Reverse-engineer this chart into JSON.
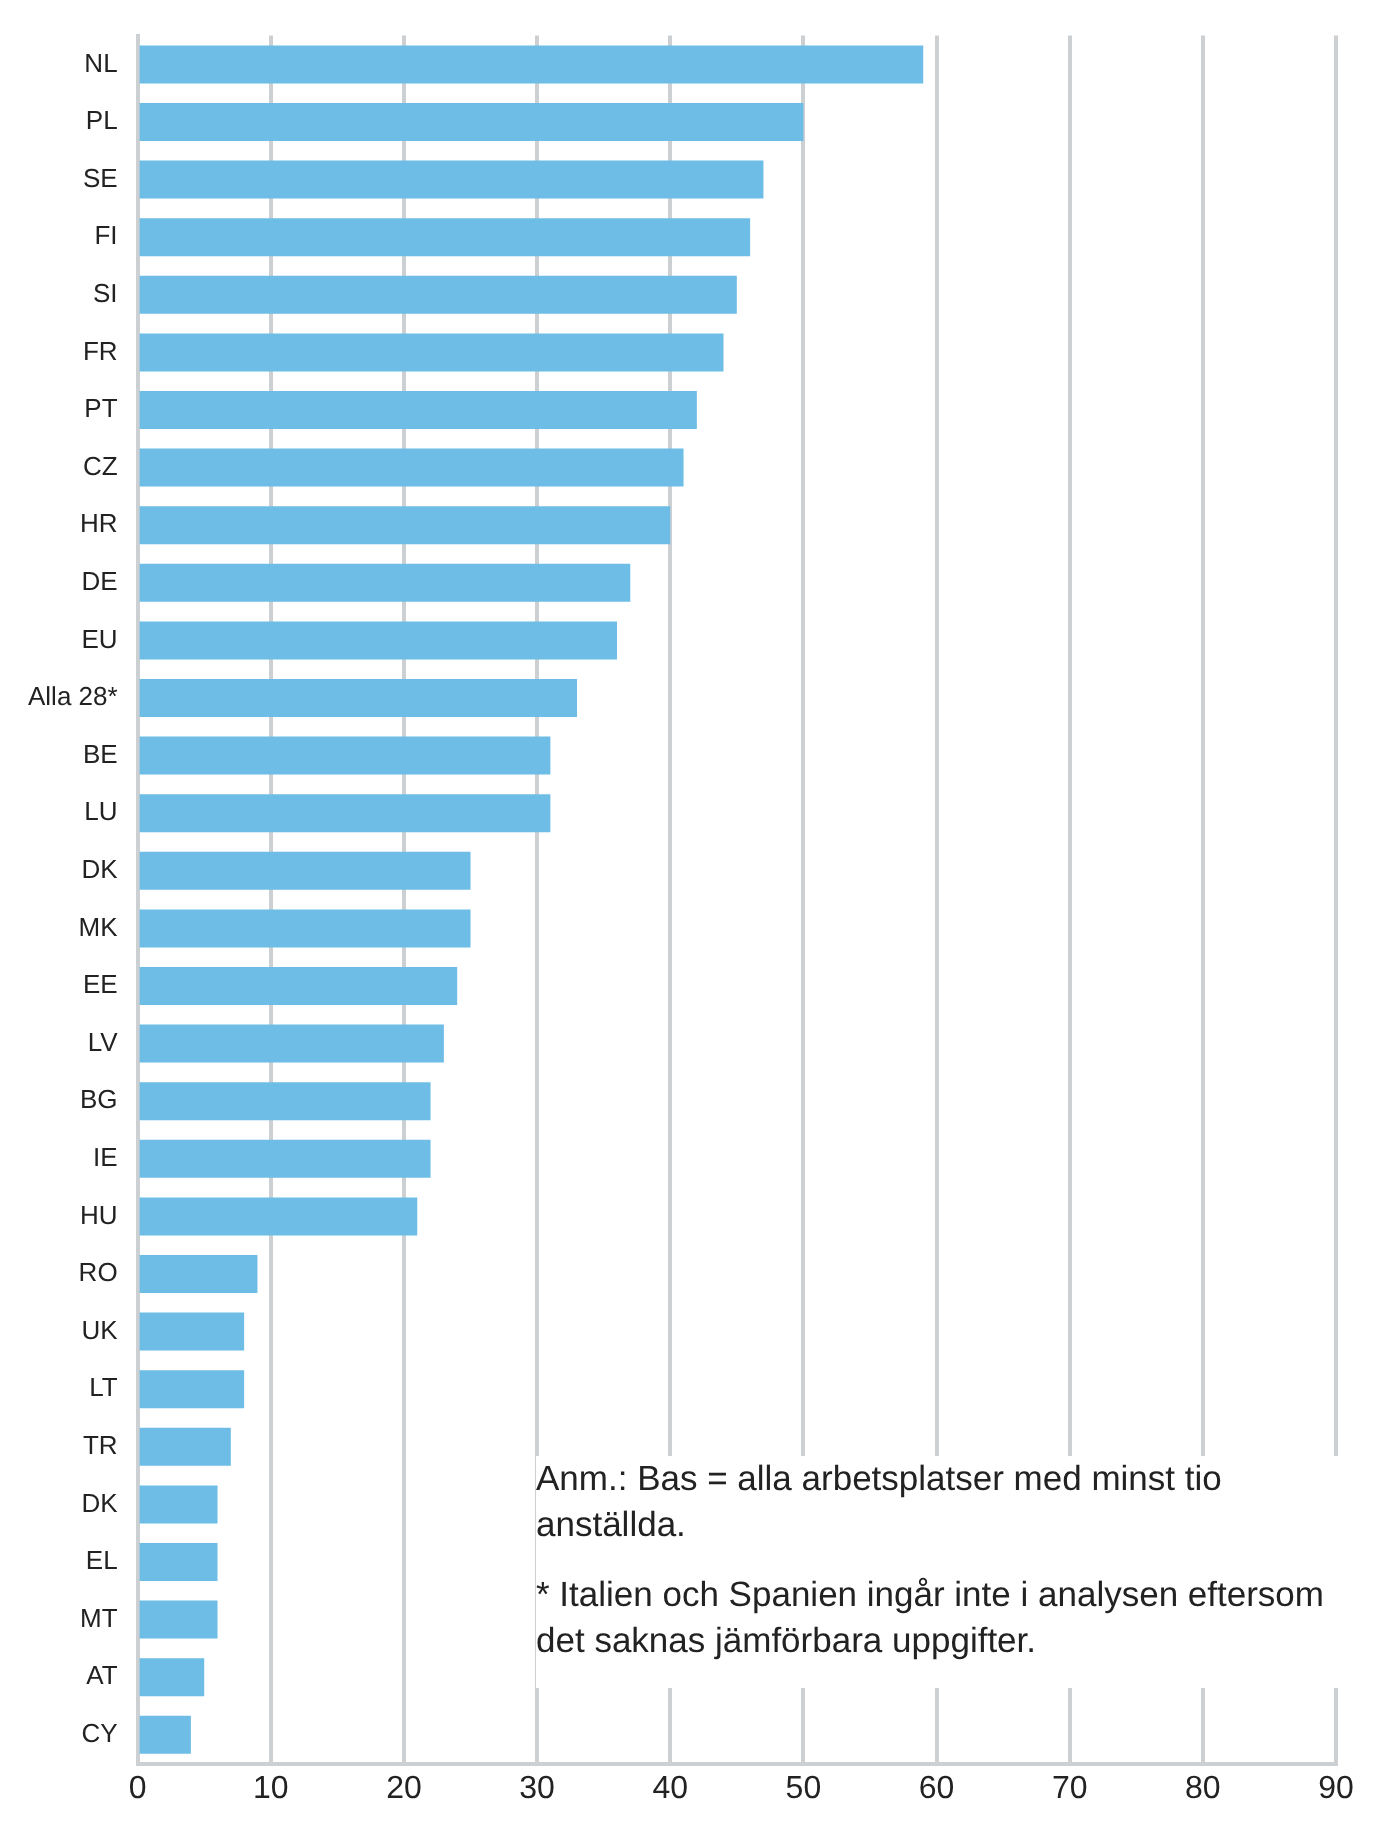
{
  "chart_data": {
    "type": "bar",
    "orientation": "horizontal",
    "categories": [
      "NL",
      "PL",
      "SE",
      "FI",
      "SI",
      "FR",
      "PT",
      "CZ",
      "HR",
      "DE",
      "EU",
      "Alla 28*",
      "BE",
      "LU",
      "DK",
      "MK",
      "EE",
      "LV",
      "BG",
      "IE",
      "HU",
      "RO",
      "UK",
      "LT",
      "TR",
      "DK",
      "EL",
      "MT",
      "AT",
      "CY"
    ],
    "values": [
      59,
      50,
      47,
      46,
      45,
      44,
      42,
      41,
      40,
      37,
      36,
      33,
      31,
      31,
      25,
      25,
      24,
      23,
      22,
      22,
      21,
      9,
      8,
      8,
      7,
      6,
      6,
      6,
      5,
      4
    ],
    "color": "#6dbde6",
    "xlim": [
      0,
      90
    ],
    "xticks": [
      0,
      10,
      20,
      30,
      40,
      50,
      60,
      70,
      80,
      90
    ],
    "grid": "x",
    "annotations": [
      "Anm.: Bas = alla arbetsplatser med minst tio anställda.",
      "* Italien och Spanien ingår inte i analysen eftersom det saknas jämförbara uppgifter."
    ]
  }
}
